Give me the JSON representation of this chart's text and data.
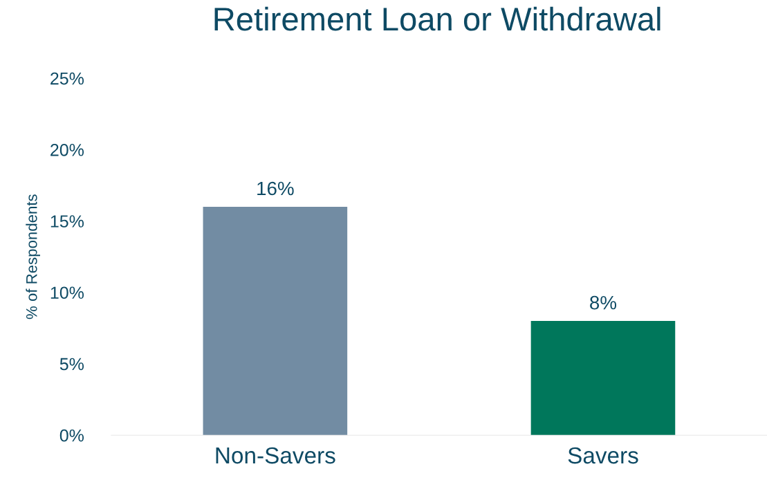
{
  "chart_data": {
    "type": "bar",
    "title": "Retirement Loan or Withdrawal",
    "ylabel": "% of Respondents",
    "categories": [
      "Non-Savers",
      "Savers"
    ],
    "values": [
      16,
      8
    ],
    "colors": [
      "#728ca3",
      "#00775b"
    ],
    "value_labels": [
      "16%",
      "8%"
    ],
    "ylim": [
      0,
      25
    ],
    "yticks": [
      {
        "value": 0,
        "label": "0%"
      },
      {
        "value": 5,
        "label": "5%"
      },
      {
        "value": 10,
        "label": "10%"
      },
      {
        "value": 15,
        "label": "15%"
      },
      {
        "value": 20,
        "label": "20%"
      },
      {
        "value": 25,
        "label": "25%"
      }
    ],
    "grid": false,
    "legend": false
  }
}
